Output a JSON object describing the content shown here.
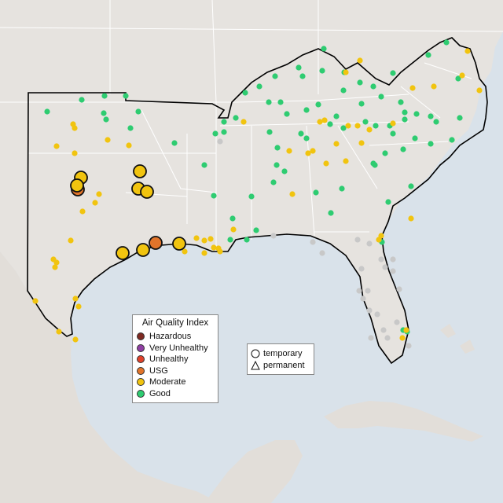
{
  "colors": {
    "ocean": "#d9e2ea",
    "land": "#e6e3df",
    "border": "#ffffff",
    "region_outline": "#000000",
    "hazardous": "#7e2a22",
    "very_unhealthy": "#8f3fa3",
    "unhealthy": "#e0412a",
    "usg": "#e2742a",
    "moderate": "#f1c40f",
    "good": "#2ecc71",
    "no_data": "#c8c8c8"
  },
  "legend": {
    "title": "Air Quality Index",
    "categories": [
      {
        "key": "hazardous",
        "label": "Hazardous"
      },
      {
        "key": "very_unhealthy",
        "label": "Very Unhealthy"
      },
      {
        "key": "unhealthy",
        "label": "Unhealthy"
      },
      {
        "key": "usg",
        "label": "USG"
      },
      {
        "key": "moderate",
        "label": "Moderate"
      },
      {
        "key": "good",
        "label": "Good"
      }
    ]
  },
  "monitor_types": {
    "temporary_label": "temporary",
    "permanent_label": "permanent"
  }
}
